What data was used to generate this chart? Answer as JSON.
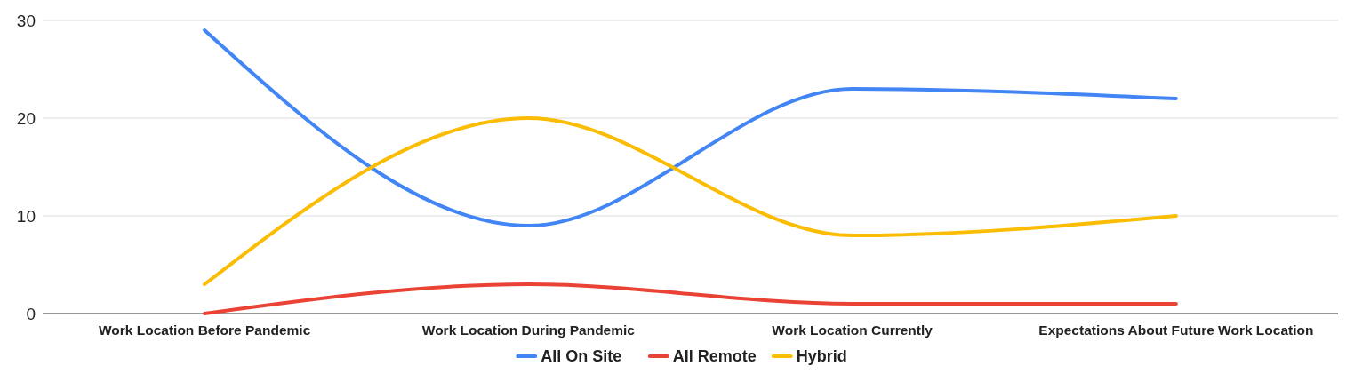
{
  "chart_data": {
    "type": "line",
    "categories": [
      "Work Location Before Pandemic",
      "Work Location During Pandemic",
      "Work Location Currently",
      "Expectations About Future Work Location"
    ],
    "series": [
      {
        "name": "All On Site",
        "color": "#4285f4",
        "values": [
          29,
          9,
          23,
          22
        ]
      },
      {
        "name": "All Remote",
        "color": "#ea4335",
        "values": [
          0,
          3,
          1,
          1
        ]
      },
      {
        "name": "Hybrid",
        "color": "#fbbc04",
        "values": [
          3,
          20,
          8,
          10
        ]
      }
    ],
    "ylim": [
      0,
      30
    ],
    "yticks": [
      0,
      10,
      20,
      30
    ],
    "grid": "y",
    "legend": "bottom",
    "marker": "none",
    "line_style": "solid"
  }
}
